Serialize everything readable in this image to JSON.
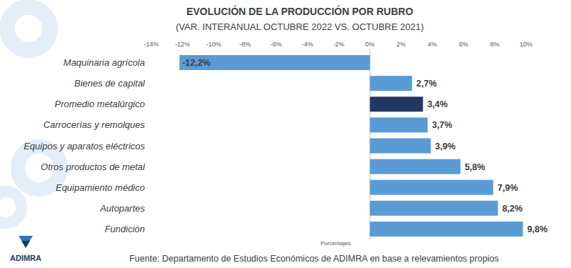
{
  "chart_data": {
    "type": "bar",
    "orientation": "horizontal",
    "title": "EVOLUCIÓN DE LA PRODUCCIÓN POR RUBRO",
    "subtitle": "(VAR. INTERANUAL OCTUBRE 2022 VS. OCTUBRE 2021)",
    "x_label": "Porcentajes",
    "source": "Fuente: Departamento de Estudios Económicos de ADIMRA en base a relevamientos propios",
    "logo": "ADIMRA",
    "categories": [
      "Maquinaria agrícola",
      "Bienes de capital",
      "Promedio metalúrgico",
      "Carrocerías y remolques",
      "Equipos y aparatos eléctricos",
      "Otros productos de metal",
      "Equipamiento médico",
      "Autopartes",
      "Fundición"
    ],
    "values": [
      -12.2,
      2.7,
      3.4,
      3.7,
      3.9,
      5.8,
      7.9,
      8.2,
      9.8
    ],
    "value_labels": [
      "-12,2%",
      "2,7%",
      "3,4%",
      "3,7%",
      "3,9%",
      "5,8%",
      "7,9%",
      "8,2%",
      "9,8%"
    ],
    "colors": [
      "#5b9bd5",
      "#5b9bd5",
      "#1f3864",
      "#5b9bd5",
      "#5b9bd5",
      "#5b9bd5",
      "#5b9bd5",
      "#5b9bd5",
      "#5b9bd5"
    ],
    "xlim": [
      -14,
      10
    ],
    "xticks": [
      {
        "value": -14,
        "label": "-14%"
      },
      {
        "value": -12,
        "label": "-12%"
      },
      {
        "value": -10,
        "label": "-10%"
      },
      {
        "value": -8,
        "label": "-8%"
      },
      {
        "value": -6,
        "label": "-6%"
      },
      {
        "value": -4,
        "label": "-4%"
      },
      {
        "value": -2,
        "label": "-2%"
      },
      {
        "value": 0,
        "label": "0%"
      },
      {
        "value": 2,
        "label": "2%"
      },
      {
        "value": 4,
        "label": "4%"
      },
      {
        "value": 6,
        "label": "6%"
      },
      {
        "value": 8,
        "label": "8%"
      },
      {
        "value": 10,
        "label": "10%"
      }
    ],
    "grid": false,
    "data_labels": true
  }
}
